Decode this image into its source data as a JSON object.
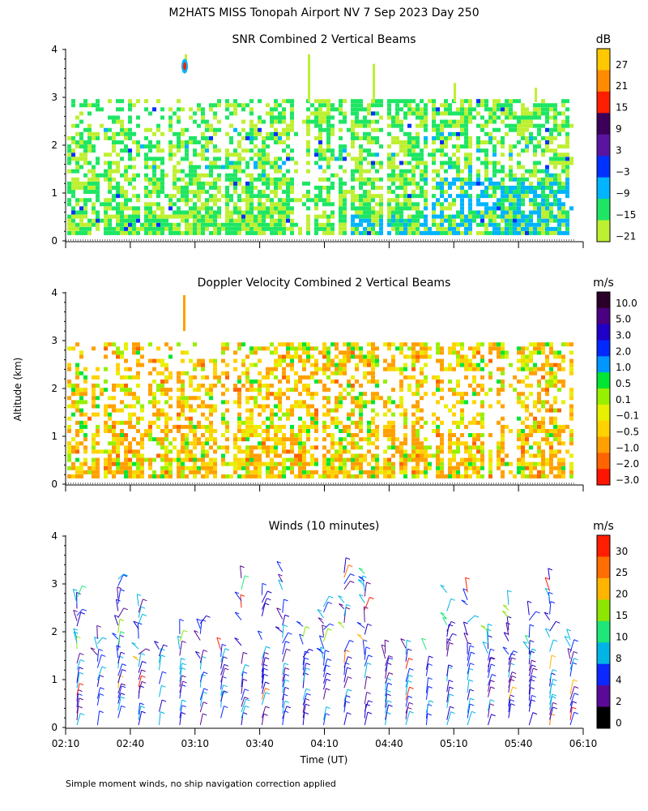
{
  "title": "M2HATS MISS Tonopah Airport NV   7 Sep 2023 Day 250",
  "ylabel": "Altitude (km)",
  "xlabel": "Time (UT)",
  "footer": "Simple moment winds, no ship navigation correction applied",
  "x_ticks": [
    "02:10",
    "02:40",
    "03:10",
    "03:40",
    "04:10",
    "04:40",
    "05:10",
    "05:40",
    "06:10"
  ],
  "y_ticks": [
    "0",
    "1",
    "2",
    "3",
    "4"
  ],
  "chart_data": [
    {
      "type": "heatmap",
      "title": "SNR Combined 2 Vertical Beams",
      "xlabel": "Time (UT)",
      "ylabel": "Altitude (km)",
      "xlim": [
        "02:10",
        "06:10"
      ],
      "ylim": [
        0,
        4
      ],
      "colorbar": {
        "unit": "dB",
        "labels": [
          "27",
          "21",
          "15",
          "9",
          "3",
          "−3",
          "−9",
          "−15",
          "−21"
        ],
        "colors": [
          "#ffc800",
          "#ff8c00",
          "#ff1e00",
          "#3c005a",
          "#5a14a0",
          "#0032ff",
          "#00b4ff",
          "#1ee664",
          "#bef032"
        ]
      },
      "echo_layers_km": [
        [
          0.1,
          0.5,
          "-15"
        ],
        [
          0.5,
          1.2,
          "-9"
        ],
        [
          1.2,
          2.3,
          "-15"
        ],
        [
          2.3,
          2.9,
          "-18"
        ]
      ]
    },
    {
      "type": "heatmap",
      "title": "Doppler Velocity Combined 2 Vertical Beams",
      "xlabel": "Time (UT)",
      "ylabel": "Altitude (km)",
      "xlim": [
        "02:10",
        "06:10"
      ],
      "ylim": [
        0,
        4
      ],
      "colorbar": {
        "unit": "m/s",
        "labels": [
          "10.0",
          "5.0",
          "3.0",
          "2.0",
          "1.0",
          "0.5",
          "0.1",
          "−0.1",
          "−0.5",
          "−1.0",
          "−2.0",
          "−3.0"
        ],
        "colors": [
          "#2a0028",
          "#4b0082",
          "#1e00c8",
          "#0028ff",
          "#0096ff",
          "#00e632",
          "#96f000",
          "#e6f000",
          "#ffd200",
          "#ffa000",
          "#ff6400",
          "#ff1400"
        ]
      }
    },
    {
      "type": "scatter",
      "title": "Winds (10 minutes)",
      "xlabel": "Time (UT)",
      "ylabel": "Altitude (km)",
      "xlim": [
        "02:10",
        "06:10"
      ],
      "ylim": [
        0,
        4
      ],
      "colorbar": {
        "unit": "m/s",
        "labels": [
          "30",
          "25",
          "20",
          "15",
          "10",
          "8",
          "4",
          "2",
          "0"
        ],
        "colors": [
          "#ff1e00",
          "#ff6e00",
          "#ffb400",
          "#8ce600",
          "#1ee678",
          "#00b4e6",
          "#0a28ff",
          "#5a0a96",
          "#000000"
        ]
      },
      "profiles_every_minutes": 10
    }
  ]
}
